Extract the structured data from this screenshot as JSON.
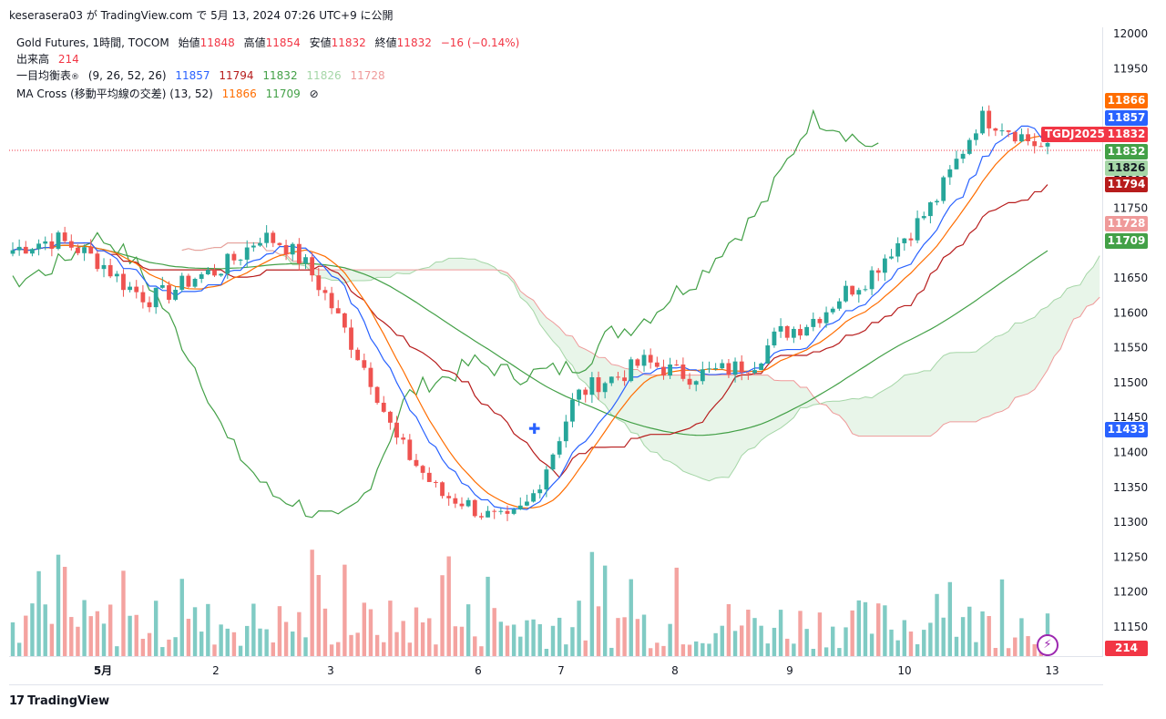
{
  "header": {
    "caption": "keserasera03 が TradingView.com で 5月 13, 2024 07:26 UTC+9 に公開"
  },
  "legend": {
    "symbol": "Gold Futures, 1時間, TOCOM",
    "open_label": "始値",
    "open": "11848",
    "high_label": "高値",
    "high": "11854",
    "low_label": "安値",
    "low": "11832",
    "close_label": "終値",
    "close": "11832",
    "change": "−16 (−0.14%)",
    "volume_label": "出来高",
    "volume": "214",
    "ichimoku_label": "一目均衡表",
    "ichimoku_params": "(9, 26, 52, 26)",
    "ichimoku_values": [
      "11857",
      "11794",
      "11832",
      "11826",
      "11728"
    ],
    "ma_label": "MA Cross (移動平均線の交差) (13, 52)",
    "ma_values": [
      "11866",
      "11709"
    ],
    "hidden_icon": "⊘"
  },
  "colors": {
    "up": "#26a69a",
    "down": "#ef5350",
    "tenkan": "#2962ff",
    "kijun": "#b71c1c",
    "chikou": "#43a047",
    "spanA": "#a5d6a7",
    "spanB": "#ef9a9a",
    "ma_fast": "#ff6d00",
    "ma_slow": "#43a047"
  },
  "price_axis": {
    "ticks": [
      "12000",
      "11950",
      "11900",
      "11850",
      "11800",
      "11750",
      "11700",
      "11650",
      "11600",
      "11550",
      "11500",
      "11450",
      "11400",
      "11350",
      "11300",
      "11250",
      "11200",
      "11150"
    ],
    "labels": [
      {
        "text": "11866",
        "color": "#ff6d00"
      },
      {
        "text": "11857",
        "color": "#2962ff"
      },
      {
        "text": "11832",
        "color": "#f23645"
      },
      {
        "text": "11832",
        "color": "#43a047"
      },
      {
        "text": "11826",
        "color": "#a5d6a7"
      },
      {
        "text": "11794",
        "color": "#b71c1c"
      },
      {
        "text": "11728",
        "color": "#ef9a9a"
      },
      {
        "text": "11709",
        "color": "#43a047"
      },
      {
        "text": "11433",
        "color": "#2962ff"
      },
      {
        "text": "214",
        "color": "#f23645"
      }
    ]
  },
  "tag": "TGDJ2025",
  "time_axis": [
    "5月",
    "2",
    "3",
    "6",
    "7",
    "8",
    "9",
    "10",
    "13"
  ],
  "footer": {
    "brand": "TradingView",
    "logo": "17"
  },
  "chart_data": {
    "type": "candlestick",
    "x": [
      "5月",
      "2",
      "3",
      "6",
      "7",
      "8",
      "9",
      "10",
      "13"
    ],
    "close_path": [
      11690,
      11700,
      11705,
      11690,
      11670,
      11640,
      11620,
      11630,
      11650,
      11660,
      11680,
      11710,
      11700,
      11670,
      11620,
      11560,
      11500,
      11420,
      11380,
      11340,
      11330,
      11310,
      11300,
      11330,
      11400,
      11480,
      11500,
      11510,
      11530,
      11520,
      11510,
      11515,
      11520,
      11530,
      11570,
      11580,
      11600,
      11630,
      11650,
      11690,
      11720,
      11760,
      11820,
      11880,
      11870,
      11850,
      11832
    ],
    "ylim": [
      11150,
      12000
    ],
    "current": {
      "open": 11848,
      "high": 11854,
      "low": 11832,
      "close": 11832,
      "volume": 214
    }
  }
}
